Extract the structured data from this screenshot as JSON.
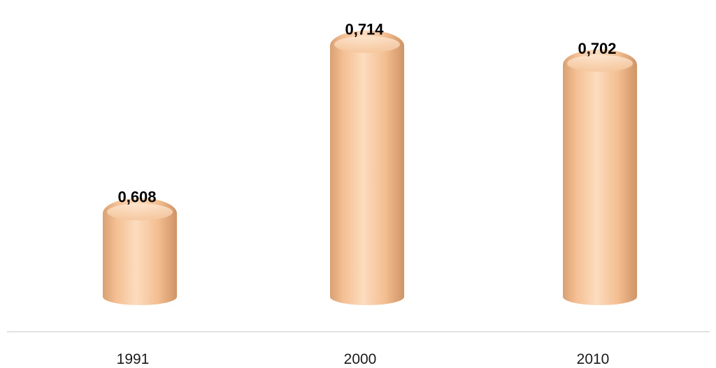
{
  "chart_data": {
    "type": "bar",
    "style": "3d-cylinder",
    "categories": [
      "1991",
      "2000",
      "2010"
    ],
    "values": [
      0.608,
      0.714,
      0.702
    ],
    "data_labels": [
      "0,608",
      "0,714",
      "0,702"
    ],
    "ylim": [
      0.55,
      0.72
    ],
    "grid": false,
    "legend": "none",
    "colors": {
      "bar_light": "#fde2c8",
      "bar_mid": "#f6c196",
      "bar_dark": "#d49a6c",
      "axis": "#d9d9d9"
    }
  }
}
